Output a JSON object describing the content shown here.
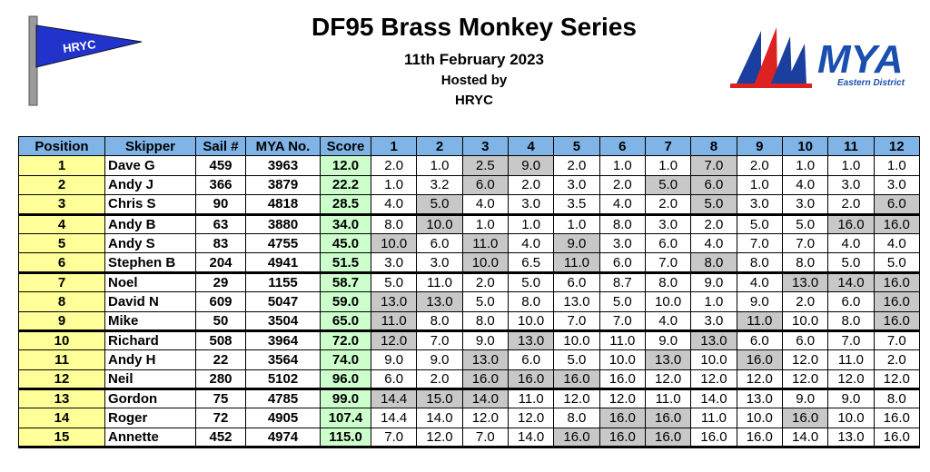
{
  "header": {
    "title": "DF95 Brass Monkey Series",
    "date": "11th February 2023",
    "hosted_by": "Hosted by",
    "host": "HRYC"
  },
  "logos": {
    "left_flag": "HRYC",
    "right_name": "MYA",
    "right_sub": "Eastern District"
  },
  "table": {
    "header_color": "#80b4e6",
    "position_color": "#ffff99",
    "score_color": "#ccffcc",
    "discard_color": "#c8c8c8",
    "columns": [
      "Position",
      "Skipper",
      "Sail #",
      "MYA No.",
      "Score",
      "1",
      "2",
      "3",
      "4",
      "5",
      "6",
      "7",
      "8",
      "9",
      "10",
      "11",
      "12"
    ],
    "rows": [
      {
        "cells": [
          "1",
          "Dave G",
          "459",
          "3963",
          "12.0",
          "2.0",
          "1.0",
          "2.5",
          "9.0",
          "2.0",
          "1.0",
          "1.0",
          "7.0",
          "2.0",
          "1.0",
          "1.0",
          "1.0"
        ],
        "discarded": [
          false,
          false,
          true,
          true,
          false,
          false,
          false,
          true,
          false,
          false,
          false,
          false
        ]
      },
      {
        "cells": [
          "2",
          "Andy J",
          "366",
          "3879",
          "22.2",
          "1.0",
          "3.2",
          "6.0",
          "2.0",
          "3.0",
          "2.0",
          "5.0",
          "6.0",
          "1.0",
          "4.0",
          "3.0",
          "3.0"
        ],
        "discarded": [
          false,
          false,
          true,
          false,
          false,
          false,
          true,
          true,
          false,
          false,
          false,
          false
        ]
      },
      {
        "cells": [
          "3",
          "Chris S",
          "90",
          "4818",
          "28.5",
          "4.0",
          "5.0",
          "4.0",
          "3.0",
          "3.5",
          "4.0",
          "2.0",
          "5.0",
          "3.0",
          "3.0",
          "2.0",
          "6.0"
        ],
        "discarded": [
          false,
          true,
          false,
          false,
          false,
          false,
          false,
          true,
          false,
          false,
          false,
          true
        ]
      },
      {
        "cells": [
          "4",
          "Andy B",
          "63",
          "3880",
          "34.0",
          "8.0",
          "10.0",
          "1.0",
          "1.0",
          "1.0",
          "8.0",
          "3.0",
          "2.0",
          "5.0",
          "5.0",
          "16.0",
          "16.0"
        ],
        "discarded": [
          false,
          true,
          false,
          false,
          false,
          false,
          false,
          false,
          false,
          false,
          true,
          true
        ]
      },
      {
        "cells": [
          "5",
          "Andy S",
          "83",
          "4755",
          "45.0",
          "10.0",
          "6.0",
          "11.0",
          "4.0",
          "9.0",
          "3.0",
          "6.0",
          "4.0",
          "7.0",
          "7.0",
          "4.0",
          "4.0"
        ],
        "discarded": [
          true,
          false,
          true,
          false,
          true,
          false,
          false,
          false,
          false,
          false,
          false,
          false
        ]
      },
      {
        "cells": [
          "6",
          "Stephen B",
          "204",
          "4941",
          "51.5",
          "3.0",
          "3.0",
          "10.0",
          "6.5",
          "11.0",
          "6.0",
          "7.0",
          "8.0",
          "8.0",
          "8.0",
          "5.0",
          "5.0"
        ],
        "discarded": [
          false,
          false,
          true,
          false,
          true,
          false,
          false,
          true,
          false,
          false,
          false,
          false
        ]
      },
      {
        "cells": [
          "7",
          "Noel",
          "29",
          "1155",
          "58.7",
          "5.0",
          "11.0",
          "2.0",
          "5.0",
          "6.0",
          "8.7",
          "8.0",
          "9.0",
          "4.0",
          "13.0",
          "14.0",
          "16.0"
        ],
        "discarded": [
          false,
          false,
          false,
          false,
          false,
          false,
          false,
          false,
          false,
          true,
          true,
          true
        ]
      },
      {
        "cells": [
          "8",
          "David N",
          "609",
          "5047",
          "59.0",
          "13.0",
          "13.0",
          "5.0",
          "8.0",
          "13.0",
          "5.0",
          "10.0",
          "1.0",
          "9.0",
          "2.0",
          "6.0",
          "16.0"
        ],
        "discarded": [
          true,
          true,
          false,
          false,
          false,
          false,
          false,
          false,
          false,
          false,
          false,
          true
        ]
      },
      {
        "cells": [
          "9",
          "Mike",
          "50",
          "3504",
          "65.0",
          "11.0",
          "8.0",
          "8.0",
          "10.0",
          "7.0",
          "7.0",
          "4.0",
          "3.0",
          "11.0",
          "10.0",
          "8.0",
          "16.0"
        ],
        "discarded": [
          true,
          false,
          false,
          false,
          false,
          false,
          false,
          false,
          true,
          false,
          false,
          true
        ]
      },
      {
        "cells": [
          "10",
          "Richard",
          "508",
          "3964",
          "72.0",
          "12.0",
          "7.0",
          "9.0",
          "13.0",
          "10.0",
          "11.0",
          "9.0",
          "13.0",
          "6.0",
          "6.0",
          "7.0",
          "7.0"
        ],
        "discarded": [
          true,
          false,
          false,
          true,
          false,
          false,
          false,
          true,
          false,
          false,
          false,
          false
        ]
      },
      {
        "cells": [
          "11",
          "Andy H",
          "22",
          "3564",
          "74.0",
          "9.0",
          "9.0",
          "13.0",
          "6.0",
          "5.0",
          "10.0",
          "13.0",
          "10.0",
          "16.0",
          "12.0",
          "11.0",
          "2.0"
        ],
        "discarded": [
          false,
          false,
          true,
          false,
          false,
          false,
          true,
          false,
          true,
          false,
          false,
          false
        ]
      },
      {
        "cells": [
          "12",
          "Neil",
          "280",
          "5102",
          "96.0",
          "6.0",
          "2.0",
          "16.0",
          "16.0",
          "16.0",
          "16.0",
          "12.0",
          "12.0",
          "12.0",
          "12.0",
          "12.0",
          "12.0"
        ],
        "discarded": [
          false,
          false,
          true,
          true,
          true,
          false,
          false,
          false,
          false,
          false,
          false,
          false
        ]
      },
      {
        "cells": [
          "13",
          "Gordon",
          "75",
          "4785",
          "99.0",
          "14.4",
          "15.0",
          "14.0",
          "11.0",
          "12.0",
          "12.0",
          "11.0",
          "14.0",
          "13.0",
          "9.0",
          "9.0",
          "8.0"
        ],
        "discarded": [
          true,
          true,
          true,
          false,
          false,
          false,
          false,
          false,
          false,
          false,
          false,
          false
        ]
      },
      {
        "cells": [
          "14",
          "Roger",
          "72",
          "4905",
          "107.4",
          "14.4",
          "14.0",
          "12.0",
          "12.0",
          "8.0",
          "16.0",
          "16.0",
          "11.0",
          "10.0",
          "16.0",
          "10.0",
          "16.0"
        ],
        "discarded": [
          false,
          false,
          false,
          false,
          false,
          true,
          true,
          false,
          false,
          true,
          false,
          false
        ]
      },
      {
        "cells": [
          "15",
          "Annette",
          "452",
          "4974",
          "115.0",
          "7.0",
          "12.0",
          "7.0",
          "14.0",
          "16.0",
          "16.0",
          "16.0",
          "16.0",
          "16.0",
          "14.0",
          "13.0",
          "16.0"
        ],
        "discarded": [
          false,
          false,
          false,
          false,
          true,
          true,
          true,
          false,
          false,
          false,
          false,
          false
        ]
      }
    ]
  }
}
